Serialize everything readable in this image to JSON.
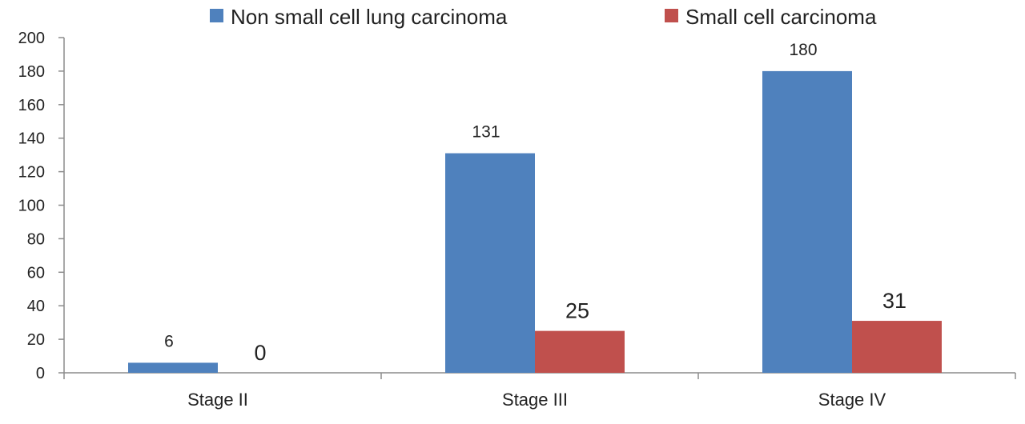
{
  "chart_data": {
    "type": "bar",
    "title": "",
    "xlabel": "",
    "ylabel": "",
    "categories": [
      "Stage II",
      "Stage III",
      "Stage IV"
    ],
    "series": [
      {
        "name": "Non small cell lung carcinoma",
        "color": "#4f81bd",
        "values": [
          6,
          131,
          180
        ]
      },
      {
        "name": "Small cell carcinoma",
        "color": "#c0504d",
        "values": [
          0,
          25,
          31
        ]
      }
    ],
    "ylim": [
      0,
      200
    ],
    "yticks": [
      0,
      20,
      40,
      60,
      80,
      100,
      120,
      140,
      160,
      180,
      200
    ],
    "grid": false,
    "legend": "top"
  }
}
